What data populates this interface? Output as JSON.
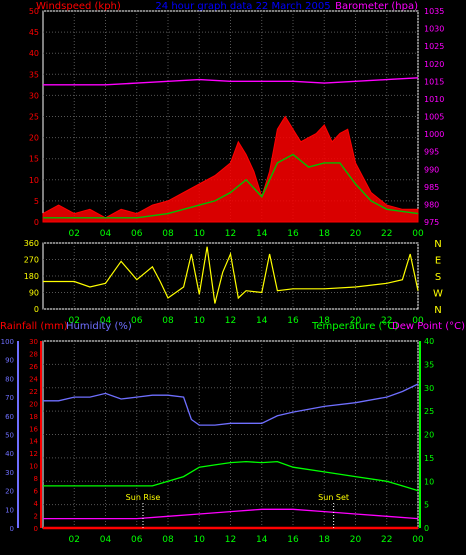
{
  "header": {
    "left_label": "Windspeed (kph)",
    "center_label": "24 hour graph data  22 March 2005",
    "right_label": "Barometer (hpa)"
  },
  "colors": {
    "wind_axis": "#ff0000",
    "baro_axis": "#ff00ff",
    "temp_axis": "#00ff00",
    "humidity_axis": "#6f6fff",
    "rain_axis": "#ff0000",
    "grid": "#555555",
    "bearing_line": "#ffff00",
    "text": "#00ff00"
  },
  "x_ticks": [
    "02",
    "04",
    "06",
    "08",
    "10",
    "12",
    "14",
    "16",
    "18",
    "20",
    "22",
    "00"
  ],
  "compass": [
    "N",
    "W",
    "S",
    "E",
    "N"
  ],
  "bottom_labels": {
    "rainfall": "Rainfall (mm)",
    "humidity": "Humidity (%)",
    "temperature": "Temperature (°C)",
    "dewpoint": "Dew Point (°C)",
    "sunrise": "Sun Rise",
    "sunset": "Sun Set"
  },
  "chart_data": [
    {
      "type": "line",
      "name": "wind",
      "x_range": [
        0,
        24
      ],
      "left_axis": {
        "label": "Windspeed (kph)",
        "ticks": [
          0,
          5,
          10,
          15,
          20,
          25,
          30,
          35,
          40,
          45,
          50
        ],
        "ylim": [
          0,
          50
        ]
      },
      "right_axis": {
        "label": "Barometer (hpa)",
        "ticks": [
          975,
          980,
          985,
          990,
          995,
          1000,
          1005,
          1010,
          1015,
          1020,
          1025,
          1030,
          1035
        ],
        "ylim": [
          975,
          1035
        ]
      },
      "series": [
        {
          "name": "Windspeed (kph)",
          "color": "#ff0000",
          "points": [
            [
              0,
              2
            ],
            [
              1,
              4
            ],
            [
              2,
              2
            ],
            [
              3,
              3
            ],
            [
              4,
              1
            ],
            [
              5,
              3
            ],
            [
              6,
              2
            ],
            [
              7,
              4
            ],
            [
              8,
              5
            ],
            [
              9,
              7
            ],
            [
              10,
              9
            ],
            [
              11,
              11
            ],
            [
              12,
              14
            ],
            [
              12.5,
              19
            ],
            [
              13,
              16
            ],
            [
              13.5,
              12
            ],
            [
              14,
              6
            ],
            [
              14.5,
              12
            ],
            [
              15,
              22
            ],
            [
              15.5,
              25
            ],
            [
              16,
              22
            ],
            [
              16.5,
              19
            ],
            [
              17,
              20
            ],
            [
              17.5,
              21
            ],
            [
              18,
              23
            ],
            [
              18.5,
              19
            ],
            [
              19,
              21
            ],
            [
              19.5,
              22
            ],
            [
              20,
              14
            ],
            [
              21,
              7
            ],
            [
              22,
              4
            ],
            [
              23,
              3
            ],
            [
              24,
              3
            ]
          ]
        },
        {
          "name": "Average Wind",
          "color": "#00c000",
          "points": [
            [
              0,
              1
            ],
            [
              2,
              1
            ],
            [
              4,
              1
            ],
            [
              6,
              1
            ],
            [
              8,
              2
            ],
            [
              10,
              4
            ],
            [
              11,
              5
            ],
            [
              12,
              7
            ],
            [
              13,
              10
            ],
            [
              14,
              6
            ],
            [
              15,
              14
            ],
            [
              16,
              16
            ],
            [
              17,
              13
            ],
            [
              18,
              14
            ],
            [
              19,
              14
            ],
            [
              20,
              9
            ],
            [
              21,
              5
            ],
            [
              22,
              3
            ],
            [
              24,
              2
            ]
          ]
        },
        {
          "name": "Barometer (hpa)",
          "color": "#ff00ff",
          "points": [
            [
              0,
              1014
            ],
            [
              2,
              1014
            ],
            [
              4,
              1014
            ],
            [
              6,
              1014.5
            ],
            [
              8,
              1015
            ],
            [
              10,
              1015.5
            ],
            [
              12,
              1015
            ],
            [
              14,
              1015
            ],
            [
              16,
              1015
            ],
            [
              18,
              1014.5
            ],
            [
              20,
              1015
            ],
            [
              22,
              1015.5
            ],
            [
              24,
              1016
            ]
          ]
        }
      ]
    },
    {
      "type": "line",
      "name": "bearing",
      "x_range": [
        0,
        24
      ],
      "left_axis": {
        "ticks": [
          0,
          90,
          180,
          270,
          360
        ],
        "ylim": [
          0,
          360
        ]
      },
      "right_axis": {
        "ticks": [
          "N",
          "W",
          "S",
          "E",
          "N"
        ]
      },
      "series": [
        {
          "name": "Wind Bearing",
          "color": "#ffff00",
          "points": [
            [
              0,
              150
            ],
            [
              2,
              150
            ],
            [
              3,
              120
            ],
            [
              4,
              140
            ],
            [
              4.5,
              200
            ],
            [
              5,
              260
            ],
            [
              6,
              160
            ],
            [
              7,
              230
            ],
            [
              7.5,
              150
            ],
            [
              8,
              60
            ],
            [
              9,
              120
            ],
            [
              9.5,
              300
            ],
            [
              10,
              80
            ],
            [
              10.5,
              340
            ],
            [
              11,
              30
            ],
            [
              11.5,
              200
            ],
            [
              12,
              300
            ],
            [
              12.5,
              60
            ],
            [
              13,
              100
            ],
            [
              14,
              90
            ],
            [
              14.5,
              300
            ],
            [
              15,
              100
            ],
            [
              16,
              110
            ],
            [
              18,
              110
            ],
            [
              20,
              120
            ],
            [
              22,
              140
            ],
            [
              23,
              160
            ],
            [
              23.5,
              300
            ],
            [
              24,
              100
            ]
          ]
        }
      ]
    },
    {
      "type": "line",
      "name": "climate",
      "x_range": [
        0,
        24
      ],
      "left_axis_humidity": {
        "label": "Humidity (%)",
        "ticks": [
          0,
          10,
          20,
          30,
          40,
          50,
          60,
          70,
          80,
          90,
          100
        ],
        "ylim": [
          0,
          100
        ]
      },
      "left_axis_rain": {
        "label": "Rainfall (mm)",
        "ticks": [
          0,
          2,
          4,
          6,
          8,
          10,
          12,
          14,
          16,
          18,
          20,
          22,
          24,
          26,
          28,
          30
        ],
        "ylim": [
          0,
          30
        ]
      },
      "right_axis": {
        "label": "Temperature (°C)",
        "ticks": [
          0,
          5,
          10,
          15,
          20,
          25,
          30,
          35,
          40
        ],
        "ylim": [
          0,
          40
        ]
      },
      "series": [
        {
          "name": "Humidity (%)",
          "color": "#6f6fff",
          "points": [
            [
              0,
              68
            ],
            [
              1,
              68
            ],
            [
              2,
              70
            ],
            [
              3,
              70
            ],
            [
              4,
              72
            ],
            [
              5,
              69
            ],
            [
              6,
              70
            ],
            [
              7,
              71
            ],
            [
              8,
              71
            ],
            [
              9,
              70
            ],
            [
              9.5,
              58
            ],
            [
              10,
              55
            ],
            [
              11,
              55
            ],
            [
              12,
              56
            ],
            [
              13,
              56
            ],
            [
              14,
              56
            ],
            [
              15,
              60
            ],
            [
              16,
              62
            ],
            [
              18,
              65
            ],
            [
              20,
              67
            ],
            [
              22,
              70
            ],
            [
              23,
              73
            ],
            [
              24,
              77
            ]
          ]
        },
        {
          "name": "Temperature (°C)",
          "color": "#00ff00",
          "points": [
            [
              0,
              9
            ],
            [
              2,
              9
            ],
            [
              4,
              9
            ],
            [
              6,
              9
            ],
            [
              7,
              9
            ],
            [
              8,
              10
            ],
            [
              9,
              11
            ],
            [
              10,
              13
            ],
            [
              11,
              13.5
            ],
            [
              12,
              14
            ],
            [
              13,
              14.2
            ],
            [
              14,
              14
            ],
            [
              15,
              14.2
            ],
            [
              16,
              13
            ],
            [
              18,
              12
            ],
            [
              20,
              11
            ],
            [
              22,
              10
            ],
            [
              23,
              9
            ],
            [
              24,
              8
            ]
          ]
        },
        {
          "name": "Rainfall (mm)",
          "color": "#ff0000",
          "points": [
            [
              0,
              0
            ],
            [
              24,
              0
            ]
          ]
        },
        {
          "name": "Dew Point (°C)",
          "color": "#ff00ff",
          "points": [
            [
              0,
              2
            ],
            [
              2,
              2
            ],
            [
              4,
              2
            ],
            [
              6,
              2
            ],
            [
              8,
              2.5
            ],
            [
              10,
              3
            ],
            [
              12,
              3.5
            ],
            [
              14,
              4
            ],
            [
              16,
              4
            ],
            [
              18,
              3.5
            ],
            [
              20,
              3
            ],
            [
              22,
              2.5
            ],
            [
              24,
              2
            ]
          ]
        }
      ],
      "annotations": [
        {
          "text": "Sun Rise",
          "x": 6.4
        },
        {
          "text": "Sun Set",
          "x": 18.6
        }
      ]
    }
  ]
}
